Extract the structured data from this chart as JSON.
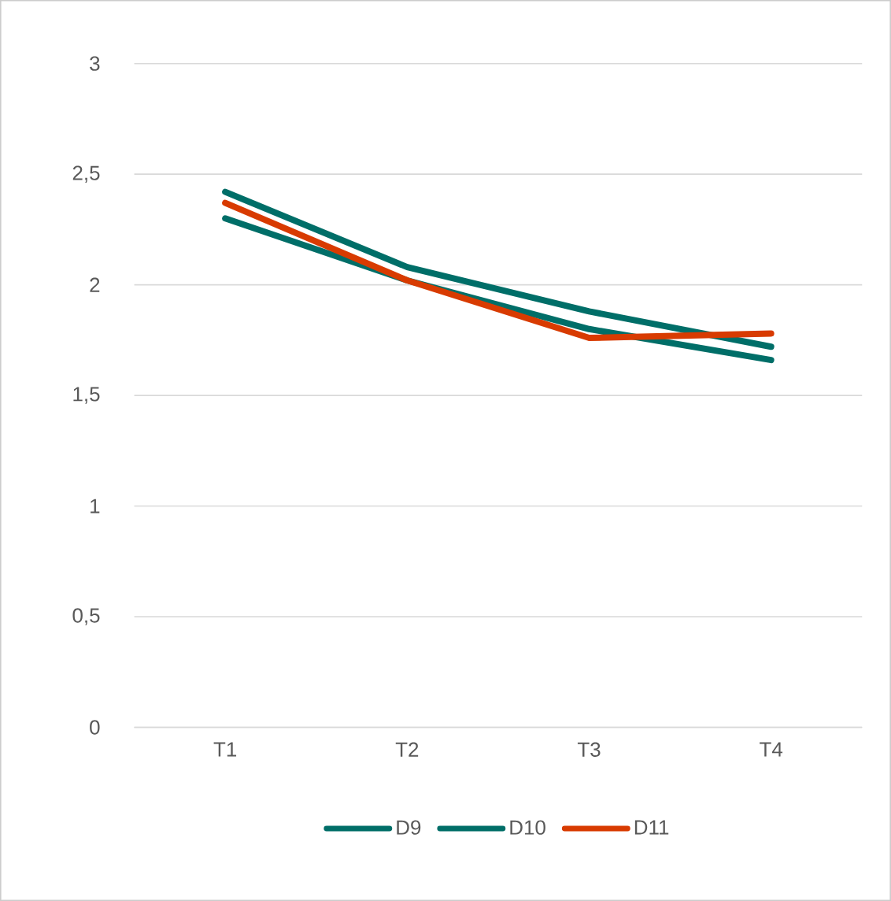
{
  "chart_data": {
    "type": "line",
    "categories": [
      "T1",
      "T2",
      "T3",
      "T4"
    ],
    "series": [
      {
        "name": "D9",
        "color": "#006e68",
        "values": [
          2.42,
          2.08,
          1.88,
          1.72
        ]
      },
      {
        "name": "D10",
        "color": "#006e68",
        "values": [
          2.3,
          2.02,
          1.8,
          1.66
        ]
      },
      {
        "name": "D11",
        "color": "#d83b01",
        "values": [
          2.37,
          2.02,
          1.76,
          1.78
        ]
      }
    ],
    "ylim": [
      0,
      3
    ],
    "yticks": [
      0,
      {
        "value": 0.5,
        "label": "0,5"
      },
      1,
      {
        "value": 1.5,
        "label": "1,5"
      },
      2,
      {
        "value": 2.5,
        "label": "2,5"
      },
      3
    ],
    "grid": "y",
    "legend": "bottom",
    "marker": "none",
    "line_style": "solid"
  }
}
